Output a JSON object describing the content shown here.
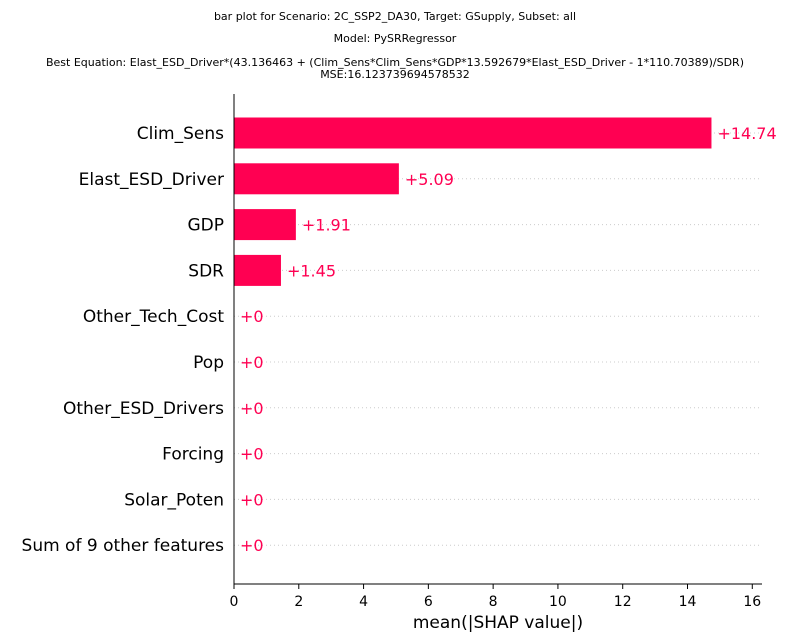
{
  "titles": {
    "line1": "bar plot for Scenario: 2C_SSP2_DA30, Target: GSupply, Subset: all",
    "line2": "Model: PySRRegressor",
    "line3": "Best Equation: Elast_ESD_Driver*(43.136463 + (Clim_Sens*Clim_Sens*GDP*13.592679*Elast_ESD_Driver - 1*110.70389)/SDR)",
    "line4": "MSE:16.123739694578532"
  },
  "chart_data": {
    "type": "bar",
    "orientation": "horizontal",
    "categories": [
      "Clim_Sens",
      "Elast_ESD_Driver",
      "GDP",
      "SDR",
      "Other_Tech_Cost",
      "Pop",
      "Other_ESD_Drivers",
      "Forcing",
      "Solar_Poten",
      "Sum of 9 other features"
    ],
    "values": [
      14.74,
      5.09,
      1.91,
      1.45,
      0,
      0,
      0,
      0,
      0,
      0
    ],
    "value_labels": [
      "+14.74",
      "+5.09",
      "+1.91",
      "+1.45",
      "+0",
      "+0",
      "+0",
      "+0",
      "+0",
      "+0"
    ],
    "xlabel": "mean(|SHAP value|)",
    "ylabel": "",
    "xlim": [
      0,
      16.3
    ],
    "xticks": [
      0,
      2,
      4,
      6,
      8,
      10,
      12,
      14,
      16
    ],
    "bar_color": "#ff0052",
    "grid": "dotted horizontal guides"
  }
}
